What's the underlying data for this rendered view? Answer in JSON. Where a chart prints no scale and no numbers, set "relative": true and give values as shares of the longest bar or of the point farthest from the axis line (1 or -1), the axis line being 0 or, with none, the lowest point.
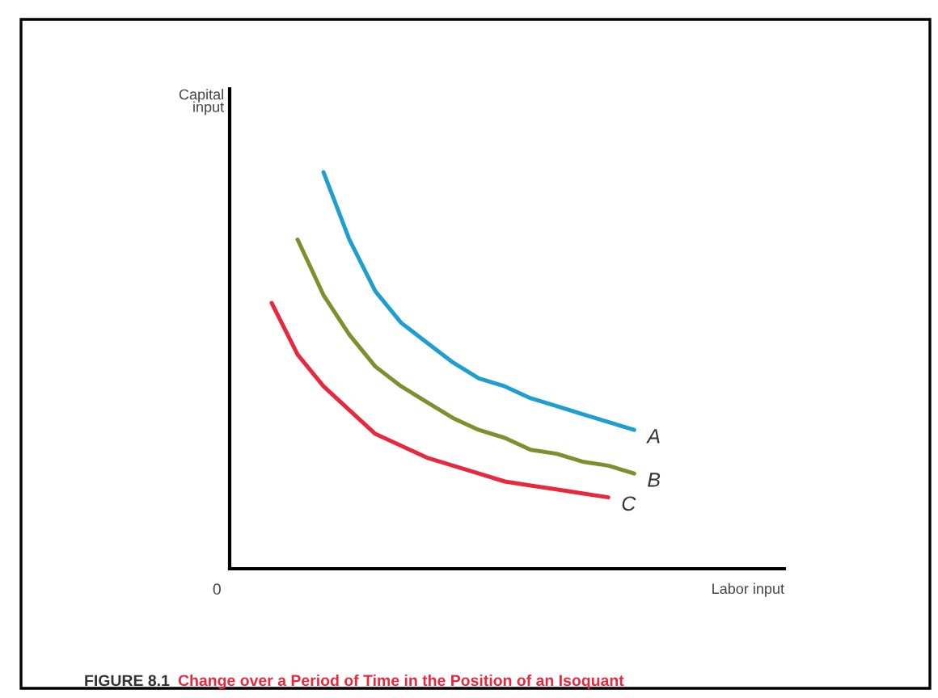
{
  "chart_data": {
    "type": "line",
    "relative": true,
    "xlabel": "Labor input",
    "ylabel": "Capital input",
    "annotations": [
      "0",
      "FIGURE 8.1",
      "Change over a Period of Time in the Position of an Isoquant"
    ],
    "categories": [
      null,
      null,
      null,
      null,
      null,
      null,
      null,
      null,
      null,
      null,
      null,
      null,
      null,
      null,
      null
    ],
    "series": [
      {
        "name": "A",
        "color": "#1e9fd0",
        "values": [
          null,
          null,
          1.0,
          0.83,
          0.7,
          0.62,
          0.57,
          0.52,
          0.48,
          0.46,
          0.43,
          0.41,
          0.39,
          0.37,
          0.35
        ]
      },
      {
        "name": "B",
        "color": "#7f8f2e",
        "values": [
          null,
          0.83,
          0.69,
          0.59,
          0.51,
          0.46,
          0.42,
          0.38,
          0.35,
          0.33,
          0.3,
          0.29,
          0.27,
          0.26,
          0.24
        ]
      },
      {
        "name": "C",
        "color": "#e8283c",
        "values": [
          0.67,
          0.54,
          0.46,
          0.4,
          0.34,
          0.31,
          0.28,
          0.26,
          0.24,
          0.22,
          0.21,
          0.2,
          0.19,
          0.18,
          null
        ]
      }
    ],
    "grid": false,
    "legend": false,
    "marker": "none",
    "line_style": "solid"
  }
}
